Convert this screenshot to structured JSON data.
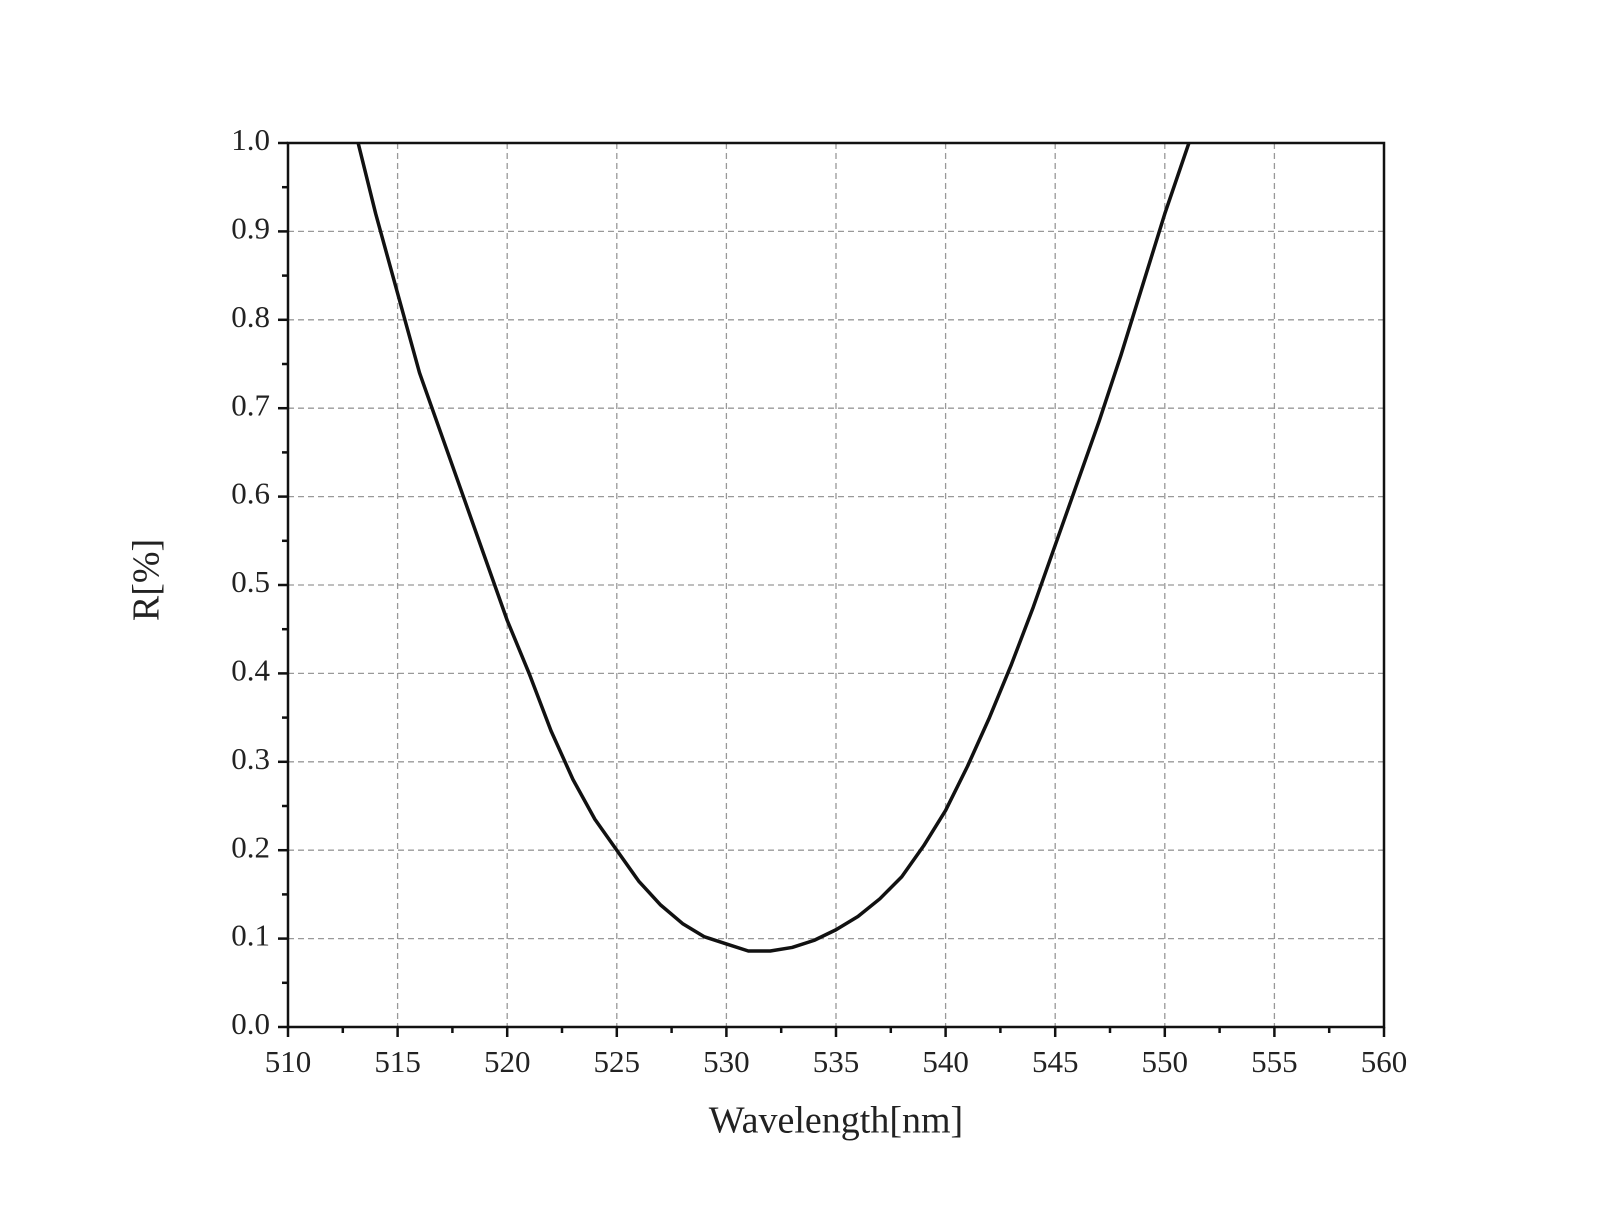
{
  "chart_data": {
    "type": "line",
    "xlabel": "Wavelength[nm]",
    "ylabel": "R[%]",
    "x": [
      513.2,
      514,
      515,
      516,
      517,
      518,
      519,
      520,
      521,
      522,
      523,
      524,
      525,
      526,
      527,
      528,
      529,
      530,
      531,
      532,
      533,
      534,
      535,
      536,
      537,
      538,
      539,
      540,
      541,
      542,
      543,
      544,
      545,
      546,
      547,
      548,
      549,
      550,
      551.1
    ],
    "values": [
      1.0,
      0.92,
      0.83,
      0.74,
      0.67,
      0.6,
      0.53,
      0.46,
      0.4,
      0.335,
      0.28,
      0.235,
      0.2,
      0.165,
      0.138,
      0.117,
      0.102,
      0.094,
      0.086,
      0.086,
      0.09,
      0.098,
      0.11,
      0.125,
      0.145,
      0.17,
      0.205,
      0.245,
      0.295,
      0.35,
      0.41,
      0.475,
      0.545,
      0.615,
      0.685,
      0.76,
      0.84,
      0.92,
      1.0
    ],
    "color": "#111111",
    "xlim": [
      510,
      560
    ],
    "xticks": [
      510,
      515,
      520,
      525,
      530,
      535,
      540,
      545,
      550,
      555,
      560
    ],
    "xminorticks": [
      512.5,
      517.5,
      522.5,
      527.5,
      532.5,
      537.5,
      542.5,
      547.5,
      552.5,
      557.5
    ],
    "ylim": [
      0,
      1.0
    ],
    "yticks": [
      {
        "value": 0,
        "label": "0.0"
      },
      0.1,
      0.2,
      0.3,
      0.4,
      0.5,
      0.6,
      0.7,
      0.8,
      0.9,
      {
        "value": 1.0,
        "label": "1.0"
      }
    ],
    "yminorticks": [
      0.05,
      0.15,
      0.25,
      0.35,
      0.45,
      0.55,
      0.65,
      0.75,
      0.85,
      0.95
    ],
    "grid": true
  }
}
